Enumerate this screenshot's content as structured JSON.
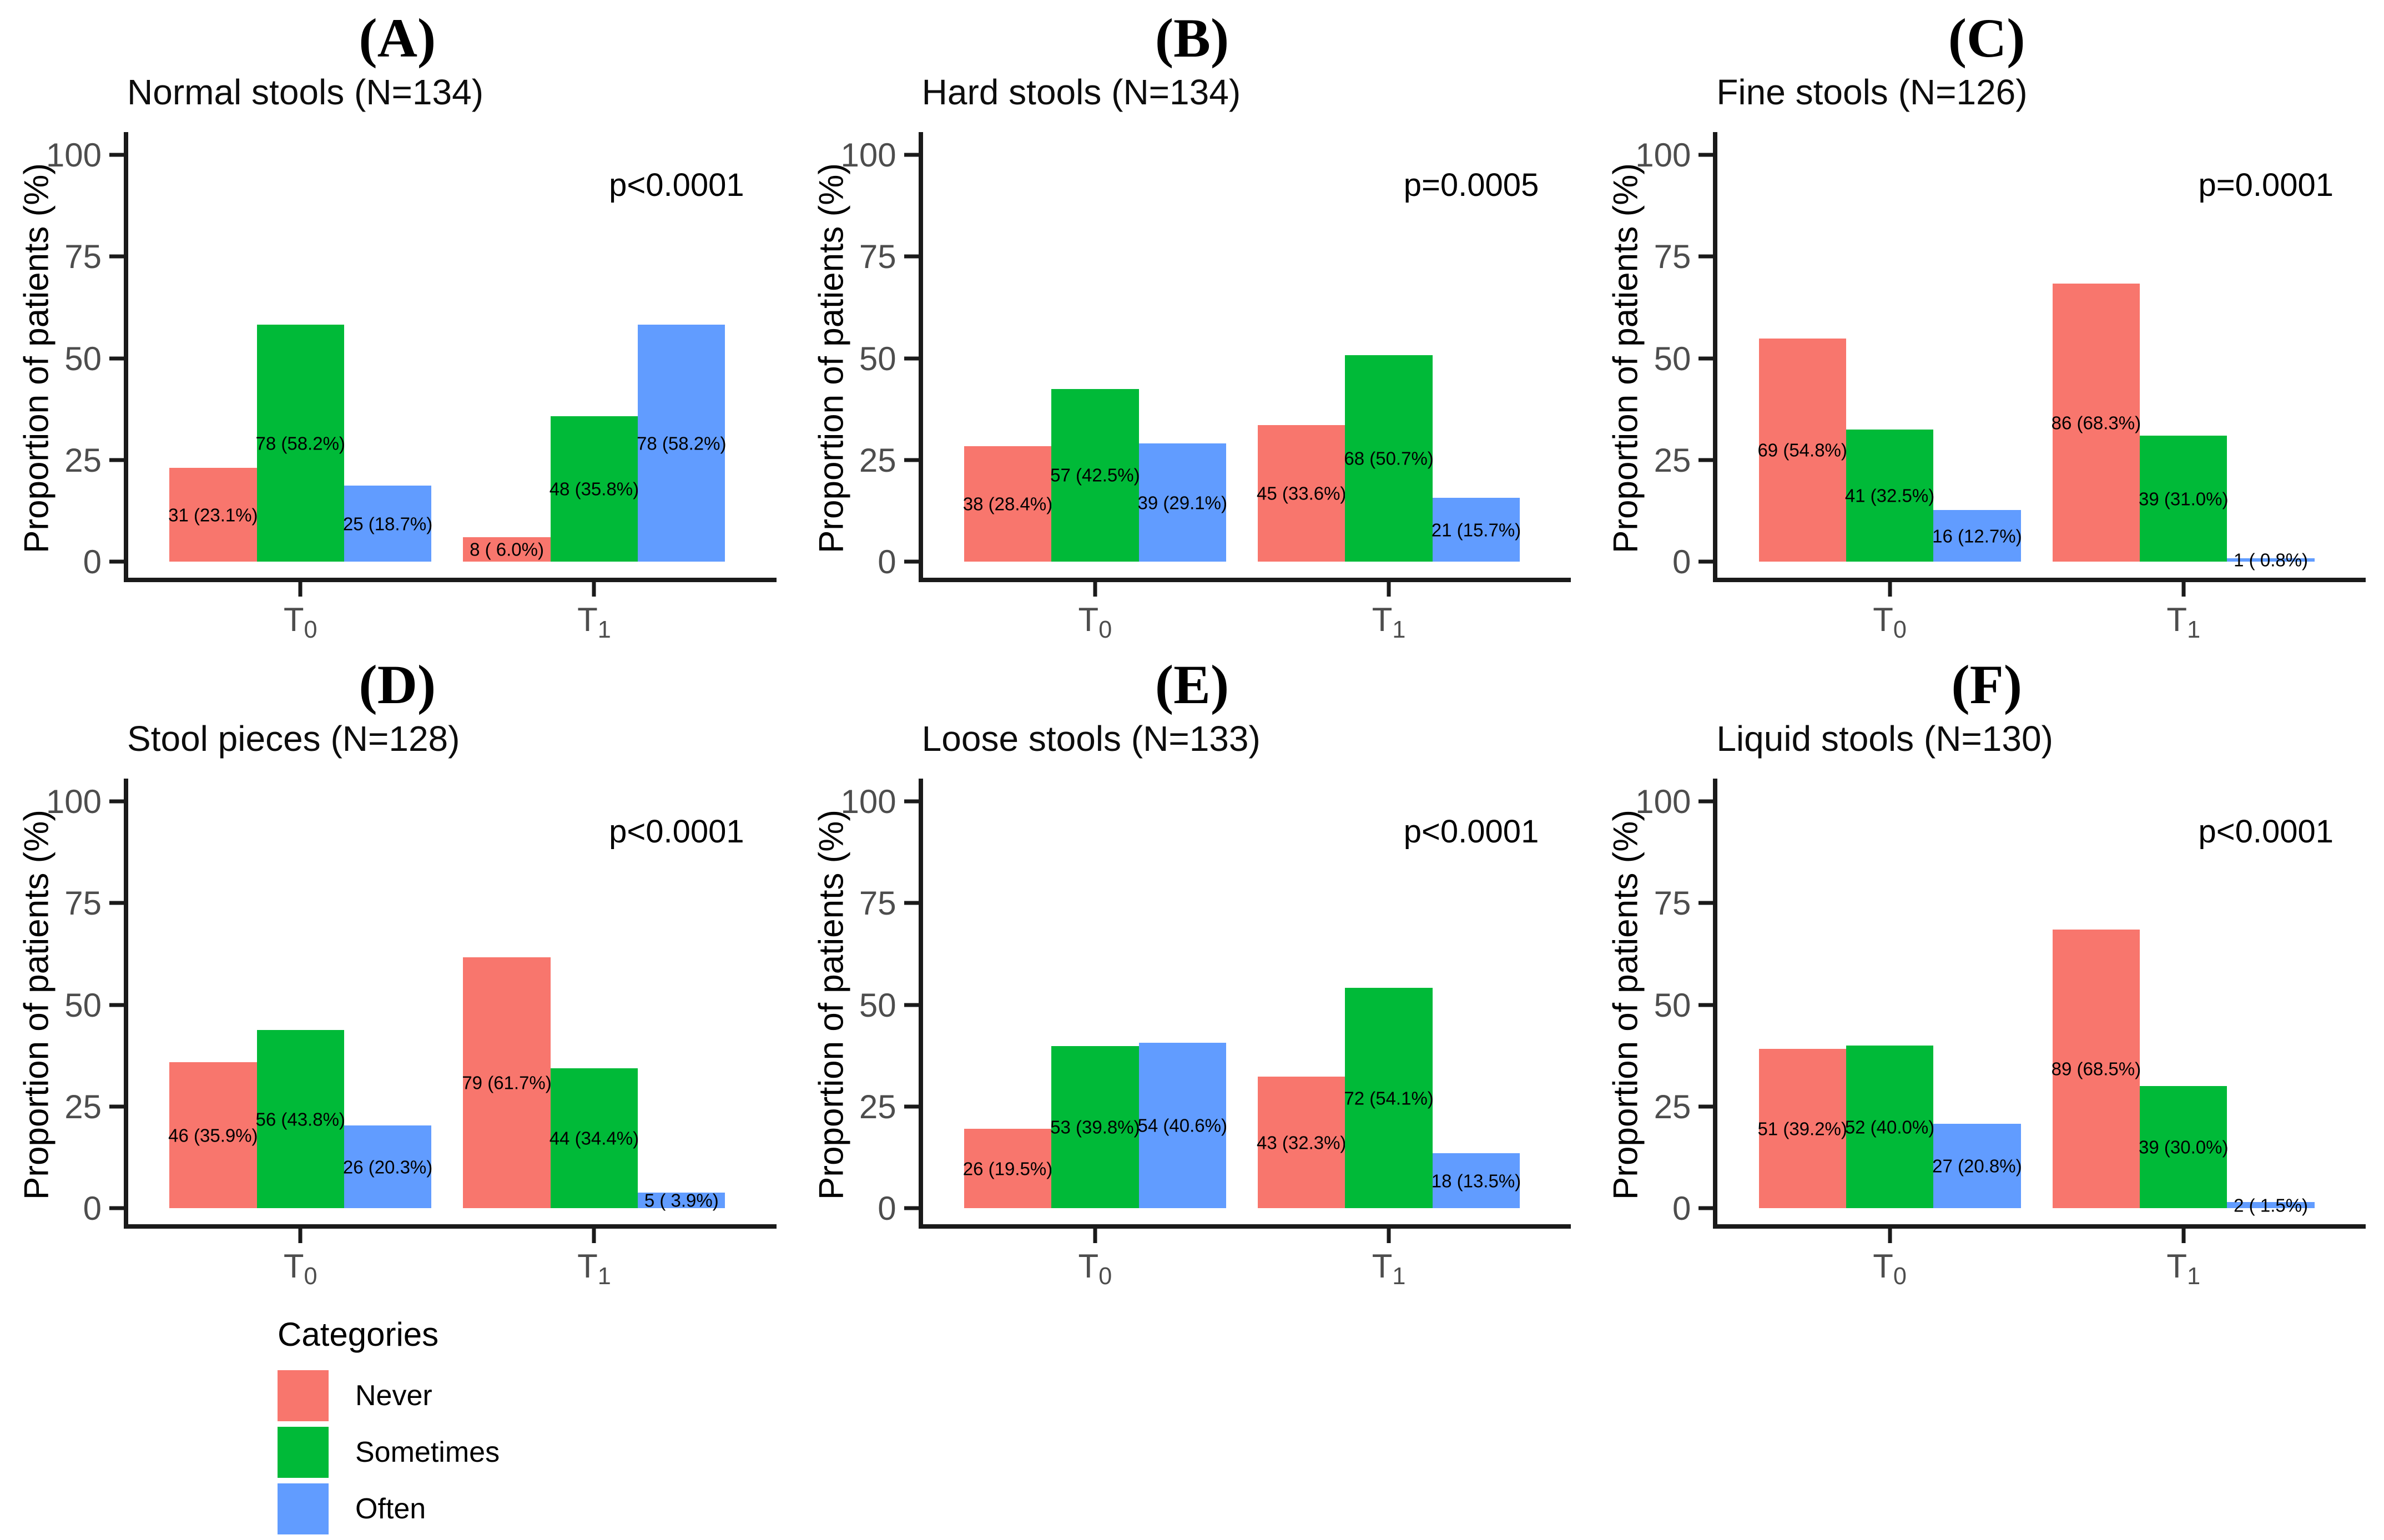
{
  "figure": {
    "background": "#ffffff"
  },
  "axis": {
    "ylabel": "Proportion of patients (%)",
    "yticks": [
      0,
      25,
      50,
      75,
      100
    ],
    "ylim": [
      0,
      100
    ],
    "xticks": [
      {
        "base": "T",
        "sub": "0"
      },
      {
        "base": "T",
        "sub": "1"
      }
    ]
  },
  "legend": {
    "title": "Categories",
    "items": [
      {
        "label": "Never",
        "color": "#F8766D"
      },
      {
        "label": "Sometimes",
        "color": "#00BA38"
      },
      {
        "label": "Often",
        "color": "#619CFF"
      }
    ]
  },
  "chart_data": [
    {
      "type": "bar",
      "panel_letter": "(A)",
      "title": "Normal stools (N=134)",
      "p_value": "p<0.0001",
      "categories": [
        "T0",
        "T1"
      ],
      "ylim": [
        0,
        100
      ],
      "series": [
        {
          "name": "Never",
          "color": "#F8766D",
          "counts": [
            31,
            8
          ],
          "values": [
            23.1,
            6.0
          ],
          "labels": [
            "31 (23.1%)",
            "8 ( 6.0%)"
          ]
        },
        {
          "name": "Sometimes",
          "color": "#00BA38",
          "counts": [
            78,
            48
          ],
          "values": [
            58.2,
            35.8
          ],
          "labels": [
            "78 (58.2%)",
            "48 (35.8%)"
          ]
        },
        {
          "name": "Often",
          "color": "#619CFF",
          "counts": [
            25,
            78
          ],
          "values": [
            18.7,
            58.2
          ],
          "labels": [
            "25 (18.7%)",
            "78 (58.2%)"
          ]
        }
      ]
    },
    {
      "type": "bar",
      "panel_letter": "(B)",
      "title": "Hard stools (N=134)",
      "p_value": "p=0.0005",
      "categories": [
        "T0",
        "T1"
      ],
      "ylim": [
        0,
        100
      ],
      "series": [
        {
          "name": "Never",
          "color": "#F8766D",
          "counts": [
            38,
            45
          ],
          "values": [
            28.4,
            33.6
          ],
          "labels": [
            "38 (28.4%)",
            "45 (33.6%)"
          ]
        },
        {
          "name": "Sometimes",
          "color": "#00BA38",
          "counts": [
            57,
            68
          ],
          "values": [
            42.5,
            50.7
          ],
          "labels": [
            "57 (42.5%)",
            "68 (50.7%)"
          ]
        },
        {
          "name": "Often",
          "color": "#619CFF",
          "counts": [
            39,
            21
          ],
          "values": [
            29.1,
            15.7
          ],
          "labels": [
            "39 (29.1%)",
            "21 (15.7%)"
          ]
        }
      ]
    },
    {
      "type": "bar",
      "panel_letter": "(C)",
      "title": "Fine stools (N=126)",
      "p_value": "p=0.0001",
      "categories": [
        "T0",
        "T1"
      ],
      "ylim": [
        0,
        100
      ],
      "series": [
        {
          "name": "Never",
          "color": "#F8766D",
          "counts": [
            69,
            86
          ],
          "values": [
            54.8,
            68.3
          ],
          "labels": [
            "69 (54.8%)",
            "86 (68.3%)"
          ]
        },
        {
          "name": "Sometimes",
          "color": "#00BA38",
          "counts": [
            41,
            39
          ],
          "values": [
            32.5,
            31.0
          ],
          "labels": [
            "41 (32.5%)",
            "39 (31.0%)"
          ]
        },
        {
          "name": "Often",
          "color": "#619CFF",
          "counts": [
            16,
            1
          ],
          "values": [
            12.7,
            0.8
          ],
          "labels": [
            "16 (12.7%)",
            "1 ( 0.8%)"
          ]
        }
      ]
    },
    {
      "type": "bar",
      "panel_letter": "(D)",
      "title": "Stool pieces (N=128)",
      "p_value": "p<0.0001",
      "categories": [
        "T0",
        "T1"
      ],
      "ylim": [
        0,
        100
      ],
      "series": [
        {
          "name": "Never",
          "color": "#F8766D",
          "counts": [
            46,
            79
          ],
          "values": [
            35.9,
            61.7
          ],
          "labels": [
            "46 (35.9%)",
            "79 (61.7%)"
          ]
        },
        {
          "name": "Sometimes",
          "color": "#00BA38",
          "counts": [
            56,
            44
          ],
          "values": [
            43.8,
            34.4
          ],
          "labels": [
            "56 (43.8%)",
            "44 (34.4%)"
          ]
        },
        {
          "name": "Often",
          "color": "#619CFF",
          "counts": [
            26,
            5
          ],
          "values": [
            20.3,
            3.9
          ],
          "labels": [
            "26 (20.3%)",
            "5 ( 3.9%)"
          ]
        }
      ]
    },
    {
      "type": "bar",
      "panel_letter": "(E)",
      "title": "Loose stools (N=133)",
      "p_value": "p<0.0001",
      "categories": [
        "T0",
        "T1"
      ],
      "ylim": [
        0,
        100
      ],
      "series": [
        {
          "name": "Never",
          "color": "#F8766D",
          "counts": [
            26,
            43
          ],
          "values": [
            19.5,
            32.3
          ],
          "labels": [
            "26 (19.5%)",
            "43 (32.3%)"
          ]
        },
        {
          "name": "Sometimes",
          "color": "#00BA38",
          "counts": [
            53,
            72
          ],
          "values": [
            39.8,
            54.1
          ],
          "labels": [
            "53 (39.8%)",
            "72 (54.1%)"
          ]
        },
        {
          "name": "Often",
          "color": "#619CFF",
          "counts": [
            54,
            18
          ],
          "values": [
            40.6,
            13.5
          ],
          "labels": [
            "54 (40.6%)",
            "18 (13.5%)"
          ]
        }
      ]
    },
    {
      "type": "bar",
      "panel_letter": "(F)",
      "title": "Liquid stools (N=130)",
      "p_value": "p<0.0001",
      "categories": [
        "T0",
        "T1"
      ],
      "ylim": [
        0,
        100
      ],
      "series": [
        {
          "name": "Never",
          "color": "#F8766D",
          "counts": [
            51,
            89
          ],
          "values": [
            39.2,
            68.5
          ],
          "labels": [
            "51 (39.2%)",
            "89 (68.5%)"
          ]
        },
        {
          "name": "Sometimes",
          "color": "#00BA38",
          "counts": [
            52,
            39
          ],
          "values": [
            40.0,
            30.0
          ],
          "labels": [
            "52 (40.0%)",
            "39 (30.0%)"
          ]
        },
        {
          "name": "Often",
          "color": "#619CFF",
          "counts": [
            27,
            2
          ],
          "values": [
            20.8,
            1.5
          ],
          "labels": [
            "27 (20.8%)",
            "2 ( 1.5%)"
          ]
        }
      ]
    }
  ]
}
